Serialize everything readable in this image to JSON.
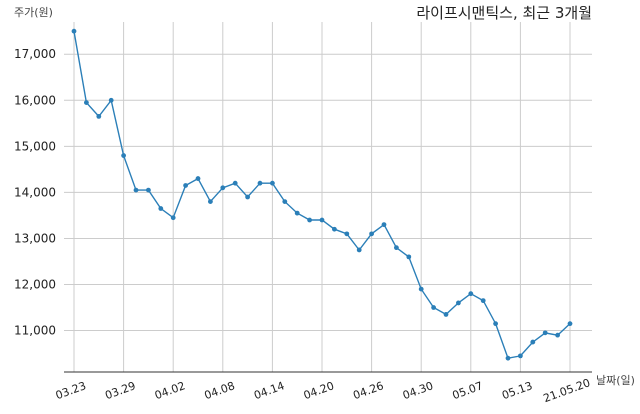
{
  "chart_data": {
    "type": "line",
    "title": "라이프시맨틱스, 최근 3개월",
    "ylabel": "주가(원)",
    "xlabel": "날짜(일)",
    "ylim": [
      10100,
      17700
    ],
    "yticks": [
      "11,000",
      "12,000",
      "13,000",
      "14,000",
      "15,000",
      "16,000",
      "17,000"
    ],
    "ytick_values": [
      11000,
      12000,
      13000,
      14000,
      15000,
      16000,
      17000
    ],
    "xtick_labels": [
      "03.23",
      "03.29",
      "04.02",
      "04.08",
      "04.14",
      "04.20",
      "04.26",
      "04.30",
      "05.07",
      "05.13",
      "21.05.20"
    ],
    "xtick_index": [
      0,
      4,
      8,
      12,
      16,
      20,
      24,
      28,
      32,
      36,
      40
    ],
    "grid": true,
    "series": [
      {
        "color": "#2b7fb8",
        "values": [
          17500,
          15950,
          15650,
          16000,
          14800,
          14050,
          14050,
          13650,
          13450,
          14150,
          14300,
          13800,
          14100,
          14200,
          13900,
          14200,
          14200,
          13800,
          13550,
          13400,
          13400,
          13200,
          13100,
          12750,
          13100,
          13300,
          12800,
          12600,
          11900,
          11500,
          11350,
          11600,
          11800,
          11650,
          11150,
          10400,
          10450,
          10750,
          10950,
          10900,
          11150
        ]
      }
    ]
  }
}
